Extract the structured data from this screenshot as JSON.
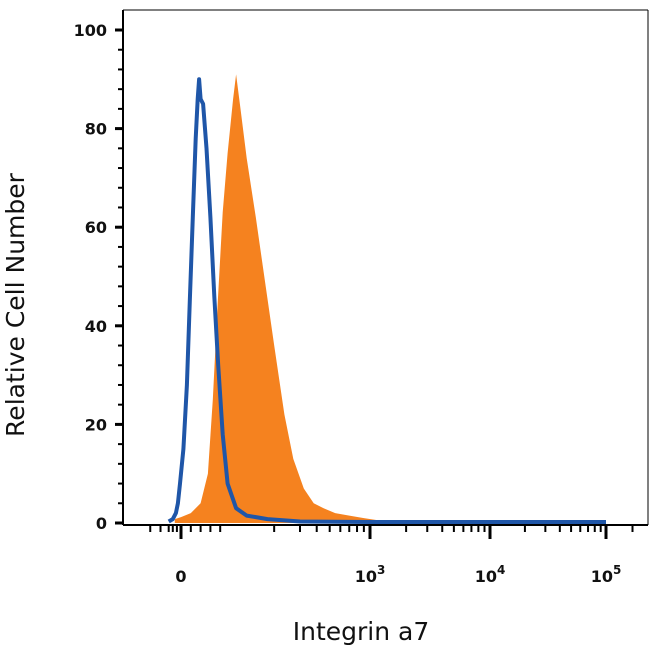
{
  "chart_data": {
    "type": "area",
    "xlabel": "Integrin a7",
    "ylabel": "Relative Cell Number",
    "ylim": [
      0,
      100
    ],
    "x_scale": "biexponential",
    "x_ticks": [
      {
        "base": "0",
        "exp": ""
      },
      {
        "base": "10",
        "exp": "3"
      },
      {
        "base": "10",
        "exp": "4"
      },
      {
        "base": "10",
        "exp": "5"
      }
    ],
    "y_ticks": [
      "0",
      "20",
      "40",
      "60",
      "80",
      "100"
    ],
    "grid": false,
    "series": [
      {
        "style": "filled",
        "color": "#f5821f",
        "points": [
          [
            -30,
            0.8
          ],
          [
            0,
            1.2
          ],
          [
            20,
            2
          ],
          [
            40,
            4
          ],
          [
            55,
            10
          ],
          [
            65,
            25
          ],
          [
            75,
            45
          ],
          [
            85,
            63
          ],
          [
            95,
            75
          ],
          [
            105,
            86
          ],
          [
            110,
            91
          ],
          [
            118,
            84
          ],
          [
            130,
            74
          ],
          [
            150,
            62
          ],
          [
            175,
            48
          ],
          [
            200,
            36
          ],
          [
            235,
            22
          ],
          [
            270,
            13
          ],
          [
            320,
            7
          ],
          [
            380,
            4
          ],
          [
            450,
            3
          ],
          [
            550,
            2
          ],
          [
            700,
            1.5
          ],
          [
            900,
            1
          ],
          [
            1200,
            0.5
          ],
          [
            1700,
            0.2
          ],
          [
            3000,
            0
          ],
          [
            100000,
            0
          ]
        ]
      },
      {
        "style": "outline",
        "color": "#1f56a8",
        "points": [
          [
            -60,
            0.3
          ],
          [
            -40,
            0.8
          ],
          [
            -25,
            2
          ],
          [
            -15,
            4
          ],
          [
            -5,
            8
          ],
          [
            5,
            15
          ],
          [
            12,
            28
          ],
          [
            18,
            45
          ],
          [
            24,
            62
          ],
          [
            30,
            78
          ],
          [
            34,
            86
          ],
          [
            37,
            90
          ],
          [
            40,
            86
          ],
          [
            45,
            85
          ],
          [
            52,
            76
          ],
          [
            60,
            62
          ],
          [
            68,
            46
          ],
          [
            76,
            32
          ],
          [
            85,
            18
          ],
          [
            95,
            8
          ],
          [
            110,
            3
          ],
          [
            130,
            1.5
          ],
          [
            180,
            0.8
          ],
          [
            300,
            0.3
          ],
          [
            1000,
            0.2
          ],
          [
            100000,
            0.2
          ]
        ]
      }
    ]
  }
}
